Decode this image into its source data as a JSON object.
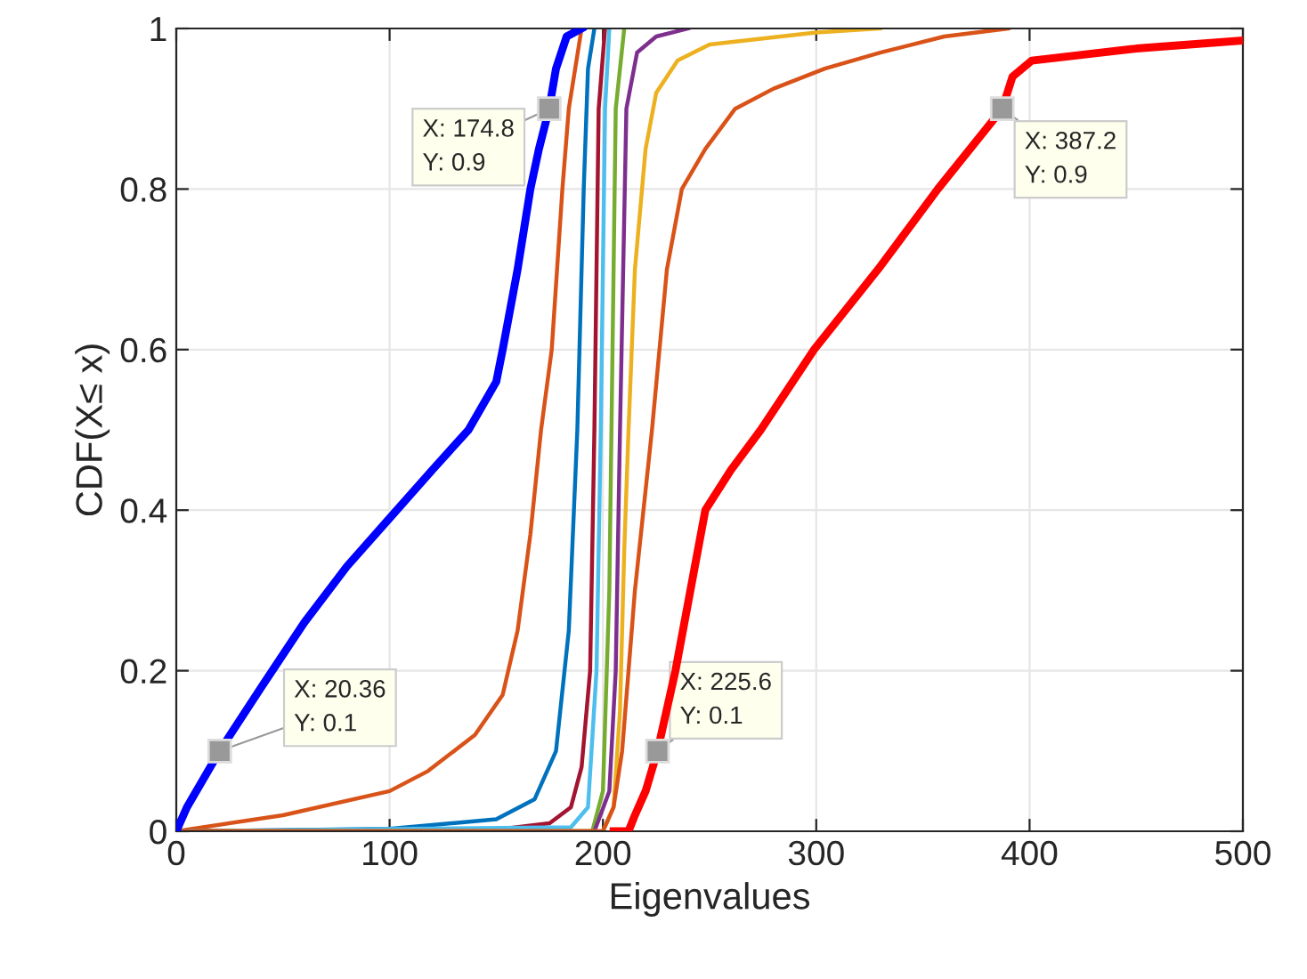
{
  "chart_data": {
    "type": "line",
    "xlabel": "Eigenvalues",
    "ylabel": "CDF(X≤ x)",
    "xlim": [
      0,
      500
    ],
    "ylim": [
      0,
      1
    ],
    "xticks": [
      0,
      100,
      200,
      300,
      400,
      500
    ],
    "yticks": [
      0,
      {
        "value": 0.2,
        "label": "0.2"
      },
      {
        "value": 0.4,
        "label": "0.4"
      },
      {
        "value": 0.6,
        "label": "0.6"
      },
      {
        "value": 0.8,
        "label": "0.8"
      },
      1
    ],
    "grid": true,
    "line_style": "solid",
    "marker": "none",
    "series": [
      {
        "color": "#0000ff",
        "x": [
          0,
          5,
          20.36,
          40,
          60,
          80,
          100,
          120,
          137,
          150,
          153,
          160,
          166,
          170,
          174.8,
          178,
          183,
          190
        ],
        "values": [
          0,
          0.03,
          0.1,
          0.18,
          0.26,
          0.33,
          0.39,
          0.45,
          0.5,
          0.56,
          0.6,
          0.7,
          0.8,
          0.85,
          0.9,
          0.95,
          0.99,
          1
        ]
      },
      {
        "color": "#d95319",
        "x": [
          0,
          50,
          100,
          118,
          140,
          153,
          160,
          166,
          171,
          176,
          181,
          184,
          190
        ],
        "values": [
          0,
          0.02,
          0.05,
          0.075,
          0.12,
          0.17,
          0.25,
          0.37,
          0.5,
          0.6,
          0.8,
          0.9,
          1
        ]
      },
      {
        "color": "#0072bd",
        "x": [
          0,
          100,
          150,
          168,
          178,
          184,
          188,
          191,
          193,
          196
        ],
        "values": [
          0,
          0.003,
          0.015,
          0.04,
          0.1,
          0.25,
          0.5,
          0.8,
          0.95,
          1
        ]
      },
      {
        "color": "#a2142f",
        "x": [
          0,
          150,
          175,
          185,
          190,
          194,
          196,
          198,
          201
        ],
        "values": [
          0,
          0.002,
          0.01,
          0.03,
          0.08,
          0.2,
          0.5,
          0.9,
          1
        ]
      },
      {
        "color": "#4dbeee",
        "x": [
          0,
          185,
          193,
          197,
          199,
          201,
          203
        ],
        "values": [
          0,
          0.005,
          0.03,
          0.2,
          0.5,
          0.9,
          1
        ]
      },
      {
        "color": "#77ac30",
        "x": [
          0,
          195,
          200,
          203,
          204,
          206,
          210
        ],
        "values": [
          0,
          0,
          0.05,
          0.3,
          0.5,
          0.9,
          1
        ]
      },
      {
        "color": "#7e2f8e",
        "x": [
          0,
          196,
          203,
          206,
          208,
          211,
          216,
          225,
          240
        ],
        "values": [
          0,
          0,
          0.05,
          0.2,
          0.5,
          0.9,
          0.97,
          0.99,
          1
        ]
      },
      {
        "color": "#edb120",
        "x": [
          0,
          200,
          205,
          208,
          210,
          212,
          215,
          220,
          225,
          235,
          250,
          300,
          330
        ],
        "values": [
          0,
          0,
          0.03,
          0.15,
          0.35,
          0.5,
          0.7,
          0.85,
          0.92,
          0.96,
          0.98,
          0.995,
          1
        ]
      },
      {
        "color": "#d95319",
        "x": [
          0,
          200,
          205,
          209,
          215,
          223,
          230,
          237,
          248,
          262,
          280,
          304,
          330,
          360,
          390
        ],
        "values": [
          0,
          0,
          0.03,
          0.1,
          0.3,
          0.5,
          0.7,
          0.8,
          0.85,
          0.9,
          0.925,
          0.95,
          0.97,
          0.99,
          1
        ]
      },
      {
        "color": "#ff0000",
        "x": [
          205,
          212,
          215,
          220,
          225.6,
          234,
          241,
          248,
          260,
          274,
          299,
          329,
          357,
          387.2,
          392,
          401,
          450,
          500
        ],
        "values": [
          0,
          0,
          0.02,
          0.05,
          0.1,
          0.2,
          0.3,
          0.4,
          0.45,
          0.5,
          0.6,
          0.7,
          0.8,
          0.9,
          0.94,
          0.96,
          0.975,
          0.985
        ]
      }
    ],
    "annotations": [
      {
        "text": "X: 20.36\nY: 0.1",
        "x": 20.36,
        "y": 0.1
      },
      {
        "text": "X: 174.8\nY: 0.9",
        "x": 174.8,
        "y": 0.9
      },
      {
        "text": "X: 225.6\nY: 0.1",
        "x": 225.6,
        "y": 0.1
      },
      {
        "text": "X: 387.2\nY: 0.9",
        "x": 387.2,
        "y": 0.9
      }
    ]
  }
}
